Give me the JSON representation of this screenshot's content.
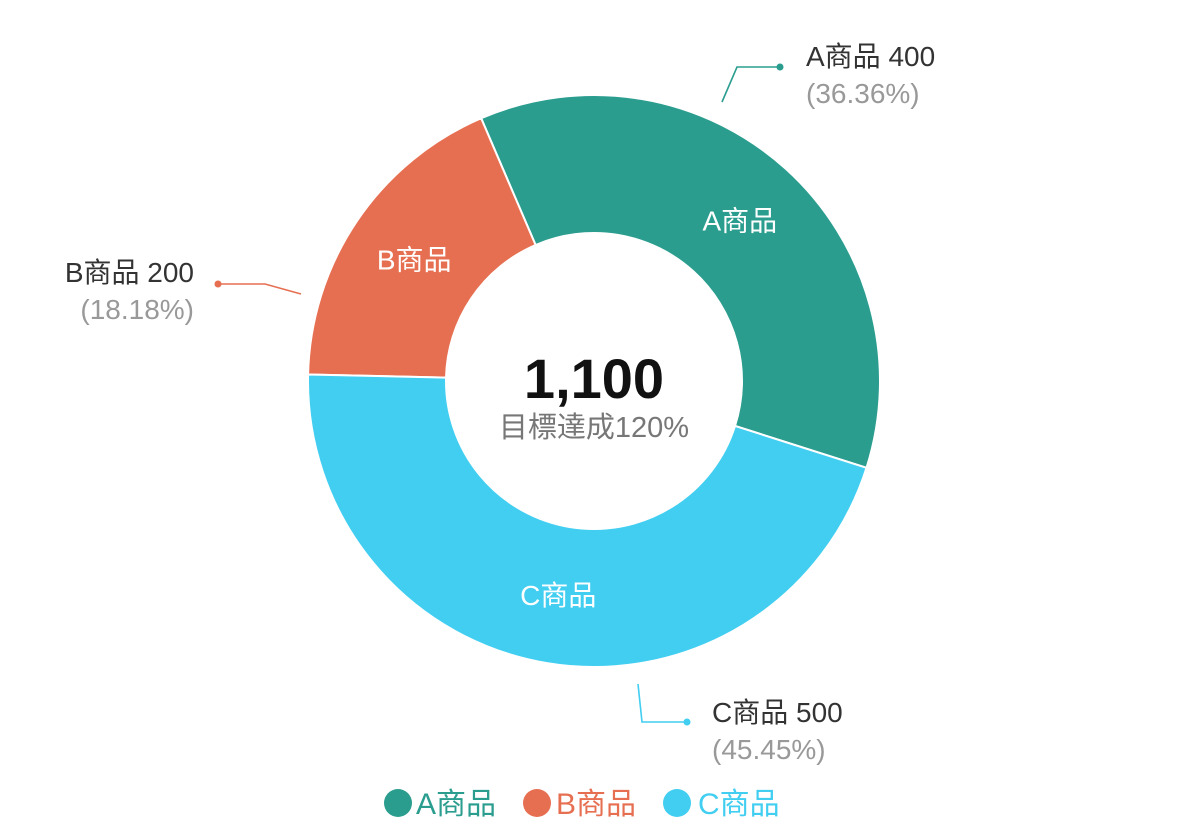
{
  "chart_data": {
    "type": "pie",
    "donut": true,
    "categories": [
      "A商品",
      "B商品",
      "C商品"
    ],
    "values": [
      400,
      200,
      500
    ],
    "percent_labels": [
      "(36.36%)",
      "(18.18%)",
      "(45.45%)"
    ],
    "callout_labels": [
      "A商品 400",
      "B商品 200",
      "C商品 500"
    ],
    "colors": [
      "#2A9D8F",
      "#E76F51",
      "#41CEF1"
    ],
    "center": {
      "total": "1,100",
      "subtitle": "目標達成120%"
    },
    "legend": {
      "position": "bottom",
      "items": [
        "A商品",
        "B商品",
        "C商品"
      ]
    }
  }
}
